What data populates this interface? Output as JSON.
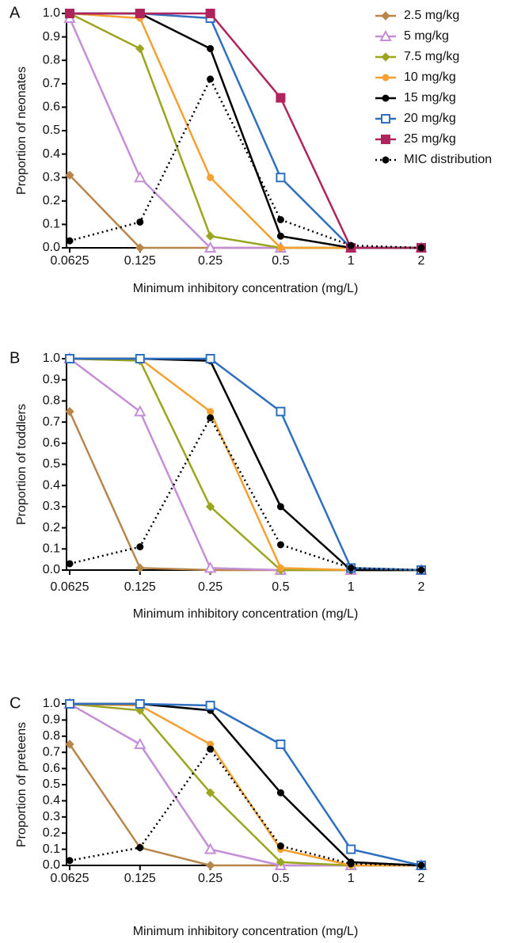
{
  "chart_data": [
    {
      "type": "line",
      "panel_label": "A",
      "y_label": "Proportion of neonates",
      "x_label": "Minimum inhibitory concentration (mg/L)",
      "categories": [
        "0.0625",
        "0.125",
        "0.25",
        "0.5",
        "1",
        "2"
      ],
      "ylim": [
        0,
        1
      ],
      "yticks": [
        {
          "value": 0,
          "label": "0.0"
        },
        0.1,
        0.2,
        0.3,
        0.4,
        0.5,
        0.6,
        0.7,
        0.8,
        0.9,
        {
          "value": 1,
          "label": "1.0"
        }
      ],
      "legend": true,
      "series": [
        {
          "name": "2.5 mg/kg",
          "color": "#b8864b",
          "marker": "diamond",
          "values": [
            0.31,
            0,
            0,
            0,
            0,
            0
          ]
        },
        {
          "name": "5 mg/kg",
          "color": "#c48fd6",
          "marker": "triangle",
          "values": [
            0.98,
            0.3,
            0,
            0,
            0,
            0
          ]
        },
        {
          "name": "7.5 mg/kg",
          "color": "#9aa61f",
          "marker": "diamond",
          "values": [
            1.0,
            0.85,
            0.05,
            0,
            0,
            0
          ]
        },
        {
          "name": "10 mg/kg",
          "color": "#f5a030",
          "marker": "circle",
          "values": [
            1.0,
            0.98,
            0.3,
            0,
            0,
            0
          ]
        },
        {
          "name": "15 mg/kg",
          "color": "#000000",
          "marker": "circle",
          "values": [
            1.0,
            1.0,
            0.85,
            0.05,
            0,
            0
          ]
        },
        {
          "name": "20 mg/kg",
          "color": "#2f6fbf",
          "marker": "open-square",
          "values": [
            1.0,
            1.0,
            0.98,
            0.3,
            0,
            0
          ]
        },
        {
          "name": "25 mg/kg",
          "color": "#b0235d",
          "marker": "square",
          "values": [
            1.0,
            1.0,
            1.0,
            0.64,
            0,
            0
          ]
        },
        {
          "name": "MIC distribution",
          "color": "#000000",
          "marker": "circle",
          "dashed": true,
          "values": [
            0.03,
            0.11,
            0.72,
            0.12,
            0.01,
            0
          ]
        }
      ]
    },
    {
      "type": "line",
      "panel_label": "B",
      "y_label": "Proportion of toddlers",
      "x_label": "Minimum inhibitory concentration (mg/L)",
      "categories": [
        "0.0625",
        "0.125",
        "0.25",
        "0.5",
        "1",
        "2"
      ],
      "ylim": [
        0,
        1
      ],
      "yticks": [
        {
          "value": 0,
          "label": "0.0"
        },
        0.1,
        0.2,
        0.3,
        0.4,
        0.5,
        0.6,
        0.7,
        0.8,
        0.9,
        {
          "value": 1,
          "label": "1.0"
        }
      ],
      "legend": false,
      "series": [
        {
          "color": "#b8864b",
          "marker": "diamond",
          "values": [
            0.75,
            0.01,
            0,
            0,
            0,
            0
          ]
        },
        {
          "color": "#c48fd6",
          "marker": "triangle",
          "values": [
            1.0,
            0.75,
            0.01,
            0,
            0,
            0
          ]
        },
        {
          "color": "#9aa61f",
          "marker": "diamond",
          "values": [
            1.0,
            0.99,
            0.3,
            0,
            0,
            0
          ]
        },
        {
          "color": "#f5a030",
          "marker": "circle",
          "values": [
            1.0,
            1.0,
            0.75,
            0.01,
            0,
            0
          ]
        },
        {
          "color": "#000000",
          "marker": "circle",
          "values": [
            1.0,
            1.0,
            0.99,
            0.3,
            0,
            0
          ]
        },
        {
          "color": "#2f6fbf",
          "marker": "open-square",
          "values": [
            1.0,
            1.0,
            1.0,
            0.75,
            0.01,
            0
          ]
        },
        {
          "color": "#000000",
          "marker": "circle",
          "dashed": true,
          "values": [
            0.03,
            0.11,
            0.72,
            0.12,
            0.01,
            0
          ]
        }
      ]
    },
    {
      "type": "line",
      "panel_label": "C",
      "y_label": "Proportion of preteens",
      "x_label": "Minimum inhibitory concentration (mg/L)",
      "categories": [
        "0.0625",
        "0.125",
        "0.25",
        "0.5",
        "1",
        "2"
      ],
      "ylim": [
        0,
        1
      ],
      "yticks": [
        {
          "value": 0,
          "label": "0.0"
        },
        0.1,
        0.2,
        0.3,
        0.4,
        0.5,
        0.6,
        0.7,
        0.8,
        0.9,
        {
          "value": 1,
          "label": "1.0"
        }
      ],
      "legend": false,
      "series": [
        {
          "color": "#b8864b",
          "marker": "diamond",
          "values": [
            0.75,
            0.11,
            0,
            0,
            0,
            0
          ]
        },
        {
          "color": "#c48fd6",
          "marker": "triangle",
          "values": [
            1.0,
            0.75,
            0.1,
            0,
            0,
            0
          ]
        },
        {
          "color": "#9aa61f",
          "marker": "diamond",
          "values": [
            1.0,
            0.96,
            0.45,
            0.02,
            0,
            0
          ]
        },
        {
          "color": "#f5a030",
          "marker": "circle",
          "values": [
            1.0,
            0.99,
            0.75,
            0.1,
            0,
            0
          ]
        },
        {
          "color": "#000000",
          "marker": "circle",
          "values": [
            1.0,
            1.0,
            0.96,
            0.45,
            0.02,
            0
          ]
        },
        {
          "color": "#2f6fbf",
          "marker": "open-square",
          "values": [
            1.0,
            1.0,
            0.99,
            0.75,
            0.1,
            0
          ]
        },
        {
          "color": "#000000",
          "marker": "circle",
          "dashed": true,
          "values": [
            0.03,
            0.11,
            0.72,
            0.12,
            0.01,
            0
          ]
        }
      ]
    }
  ]
}
